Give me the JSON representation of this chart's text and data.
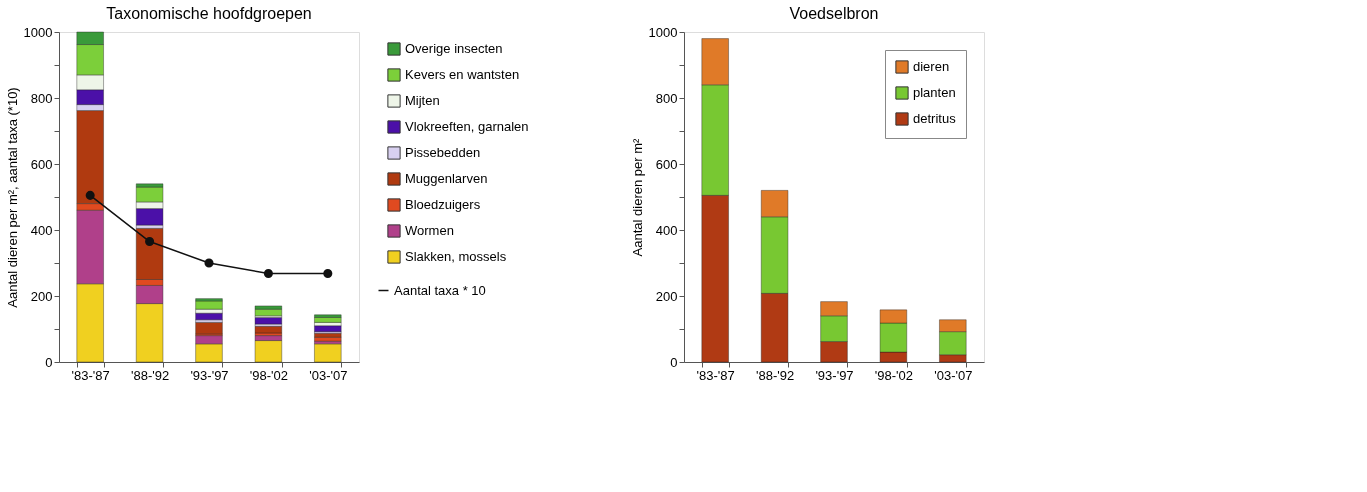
{
  "chart_data": [
    {
      "type": "bar",
      "stacked": true,
      "title": "Taxonomische hoofdgroepen",
      "ylabel": "Aantal dieren per m², aantal taxa (*10)",
      "categories": [
        "'83-'87",
        "'88-'92",
        "'93-'97",
        "'98-'02",
        "'03-'07"
      ],
      "ylim": [
        0,
        1000
      ],
      "yticks": [
        0,
        {
          "value": 100,
          "label": null
        },
        200,
        {
          "value": 300,
          "label": null
        },
        400,
        {
          "value": 500,
          "label": null
        },
        600,
        {
          "value": 700,
          "label": null
        },
        800,
        {
          "value": 900,
          "label": null
        },
        1000
      ],
      "grid": false,
      "legend": "right",
      "marker": "circle",
      "line_style": "solid",
      "series": [
        {
          "name": "Slakken, mossels",
          "color": "#f0d020",
          "values": [
            237,
            177,
            55,
            65,
            55
          ]
        },
        {
          "name": "Wormen",
          "color": "#b0408a",
          "values": [
            223,
            55,
            25,
            15,
            8
          ]
        },
        {
          "name": "Bloedzuigers",
          "color": "#e04a20",
          "values": [
            20,
            18,
            5,
            8,
            12
          ]
        },
        {
          "name": "Muggenlarven",
          "color": "#b03a10",
          "values": [
            282,
            155,
            35,
            20,
            12
          ]
        },
        {
          "name": "Pissebedden",
          "color": "#d8d0f0",
          "values": [
            18,
            10,
            8,
            7,
            5
          ]
        },
        {
          "name": "Vlokreeften, garnalen",
          "color": "#4b10a8",
          "values": [
            45,
            50,
            20,
            20,
            18
          ]
        },
        {
          "name": "Mijten",
          "color": "#eef5e8",
          "values": [
            45,
            20,
            12,
            5,
            10
          ]
        },
        {
          "name": "Kevers en wantsten",
          "color": "#7ccf3a",
          "values": [
            92,
            45,
            25,
            20,
            15
          ]
        },
        {
          "name": "Overige insecten",
          "color": "#3a9a3a",
          "values": [
            38,
            10,
            7,
            10,
            8
          ]
        },
        {
          "name": "Aantal taxa * 10",
          "type": "line",
          "color": "#111111",
          "values": [
            505,
            365,
            300,
            268,
            268
          ]
        }
      ]
    },
    {
      "type": "bar",
      "stacked": true,
      "title": "Voedselbron",
      "ylabel": "Aantal dieren per m²",
      "categories": [
        "'83-'87",
        "'88-'92",
        "'93-'97",
        "'98-'02",
        "'03-'07"
      ],
      "ylim": [
        0,
        1000
      ],
      "yticks": [
        0,
        {
          "value": 100,
          "label": null
        },
        200,
        {
          "value": 300,
          "label": null
        },
        400,
        {
          "value": 500,
          "label": null
        },
        600,
        {
          "value": 700,
          "label": null
        },
        800,
        {
          "value": 900,
          "label": null
        },
        1000
      ],
      "grid": false,
      "legend": "top right",
      "series": [
        {
          "name": "detritus",
          "color": "#b03a14",
          "values": [
            505,
            208,
            62,
            30,
            22
          ]
        },
        {
          "name": "planten",
          "color": "#78c832",
          "values": [
            335,
            232,
            78,
            88,
            70
          ]
        },
        {
          "name": "dieren",
          "color": "#e07a28",
          "values": [
            140,
            80,
            43,
            40,
            36
          ]
        }
      ]
    }
  ]
}
